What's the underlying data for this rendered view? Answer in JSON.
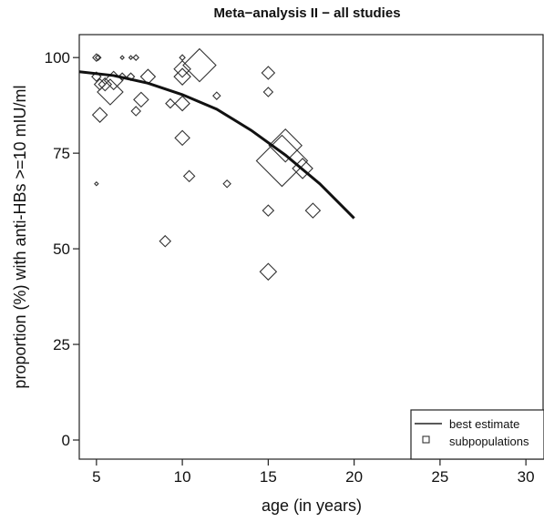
{
  "chart_data": {
    "type": "scatter",
    "title": "Meta−analysis II − all studies",
    "xlabel": "age (in years)",
    "ylabel": "proportion (%) with anti-HBs >=10 mIU/ml",
    "xlim": [
      4,
      31
    ],
    "ylim": [
      -5,
      106
    ],
    "x_ticks": [
      5,
      10,
      15,
      20,
      25,
      30
    ],
    "y_ticks": [
      0,
      25,
      50,
      75,
      100
    ],
    "grid": false,
    "legend_position": "bottom-right",
    "legend": [
      {
        "label": "best estimate",
        "kind": "line"
      },
      {
        "label": "subpopulations",
        "kind": "marker"
      }
    ],
    "series": [
      {
        "name": "best estimate",
        "kind": "line",
        "x": [
          4,
          6,
          8,
          10,
          12,
          14,
          16,
          18,
          20
        ],
        "y": [
          96.3,
          95.3,
          93.3,
          90.3,
          86.5,
          81.0,
          74.5,
          67.0,
          58.0
        ]
      },
      {
        "name": "subpopulations",
        "kind": "marker",
        "points": [
          {
            "x": 5.0,
            "y": 100,
            "size": 4
          },
          {
            "x": 5.1,
            "y": 100,
            "size": 3
          },
          {
            "x": 5.0,
            "y": 95,
            "size": 5
          },
          {
            "x": 5.2,
            "y": 93,
            "size": 6
          },
          {
            "x": 5.0,
            "y": 67,
            "size": 2
          },
          {
            "x": 5.2,
            "y": 85,
            "size": 8
          },
          {
            "x": 5.5,
            "y": 93,
            "size": 7
          },
          {
            "x": 5.8,
            "y": 91,
            "size": 14
          },
          {
            "x": 6.0,
            "y": 94,
            "size": 10
          },
          {
            "x": 6.5,
            "y": 95,
            "size": 4
          },
          {
            "x": 6.5,
            "y": 100,
            "size": 2
          },
          {
            "x": 7.0,
            "y": 100,
            "size": 2
          },
          {
            "x": 7.3,
            "y": 100,
            "size": 3
          },
          {
            "x": 7.0,
            "y": 95,
            "size": 4
          },
          {
            "x": 7.3,
            "y": 86,
            "size": 5
          },
          {
            "x": 7.6,
            "y": 89,
            "size": 8
          },
          {
            "x": 8.0,
            "y": 95,
            "size": 8
          },
          {
            "x": 9.0,
            "y": 52,
            "size": 6
          },
          {
            "x": 9.3,
            "y": 88,
            "size": 5
          },
          {
            "x": 10.0,
            "y": 100,
            "size": 3
          },
          {
            "x": 10.0,
            "y": 97,
            "size": 9
          },
          {
            "x": 10.0,
            "y": 95,
            "size": 9
          },
          {
            "x": 10.0,
            "y": 88,
            "size": 8
          },
          {
            "x": 10.0,
            "y": 79,
            "size": 8
          },
          {
            "x": 10.4,
            "y": 69,
            "size": 6
          },
          {
            "x": 11.0,
            "y": 98,
            "size": 18
          },
          {
            "x": 12.0,
            "y": 90,
            "size": 4
          },
          {
            "x": 12.6,
            "y": 67,
            "size": 4
          },
          {
            "x": 15.0,
            "y": 96,
            "size": 7
          },
          {
            "x": 15.0,
            "y": 91,
            "size": 5
          },
          {
            "x": 15.0,
            "y": 60,
            "size": 6
          },
          {
            "x": 15.0,
            "y": 44,
            "size": 9
          },
          {
            "x": 15.8,
            "y": 73,
            "size": 28
          },
          {
            "x": 16.0,
            "y": 77,
            "size": 18
          },
          {
            "x": 17.0,
            "y": 71,
            "size": 11
          },
          {
            "x": 17.6,
            "y": 60,
            "size": 8
          }
        ]
      }
    ]
  }
}
